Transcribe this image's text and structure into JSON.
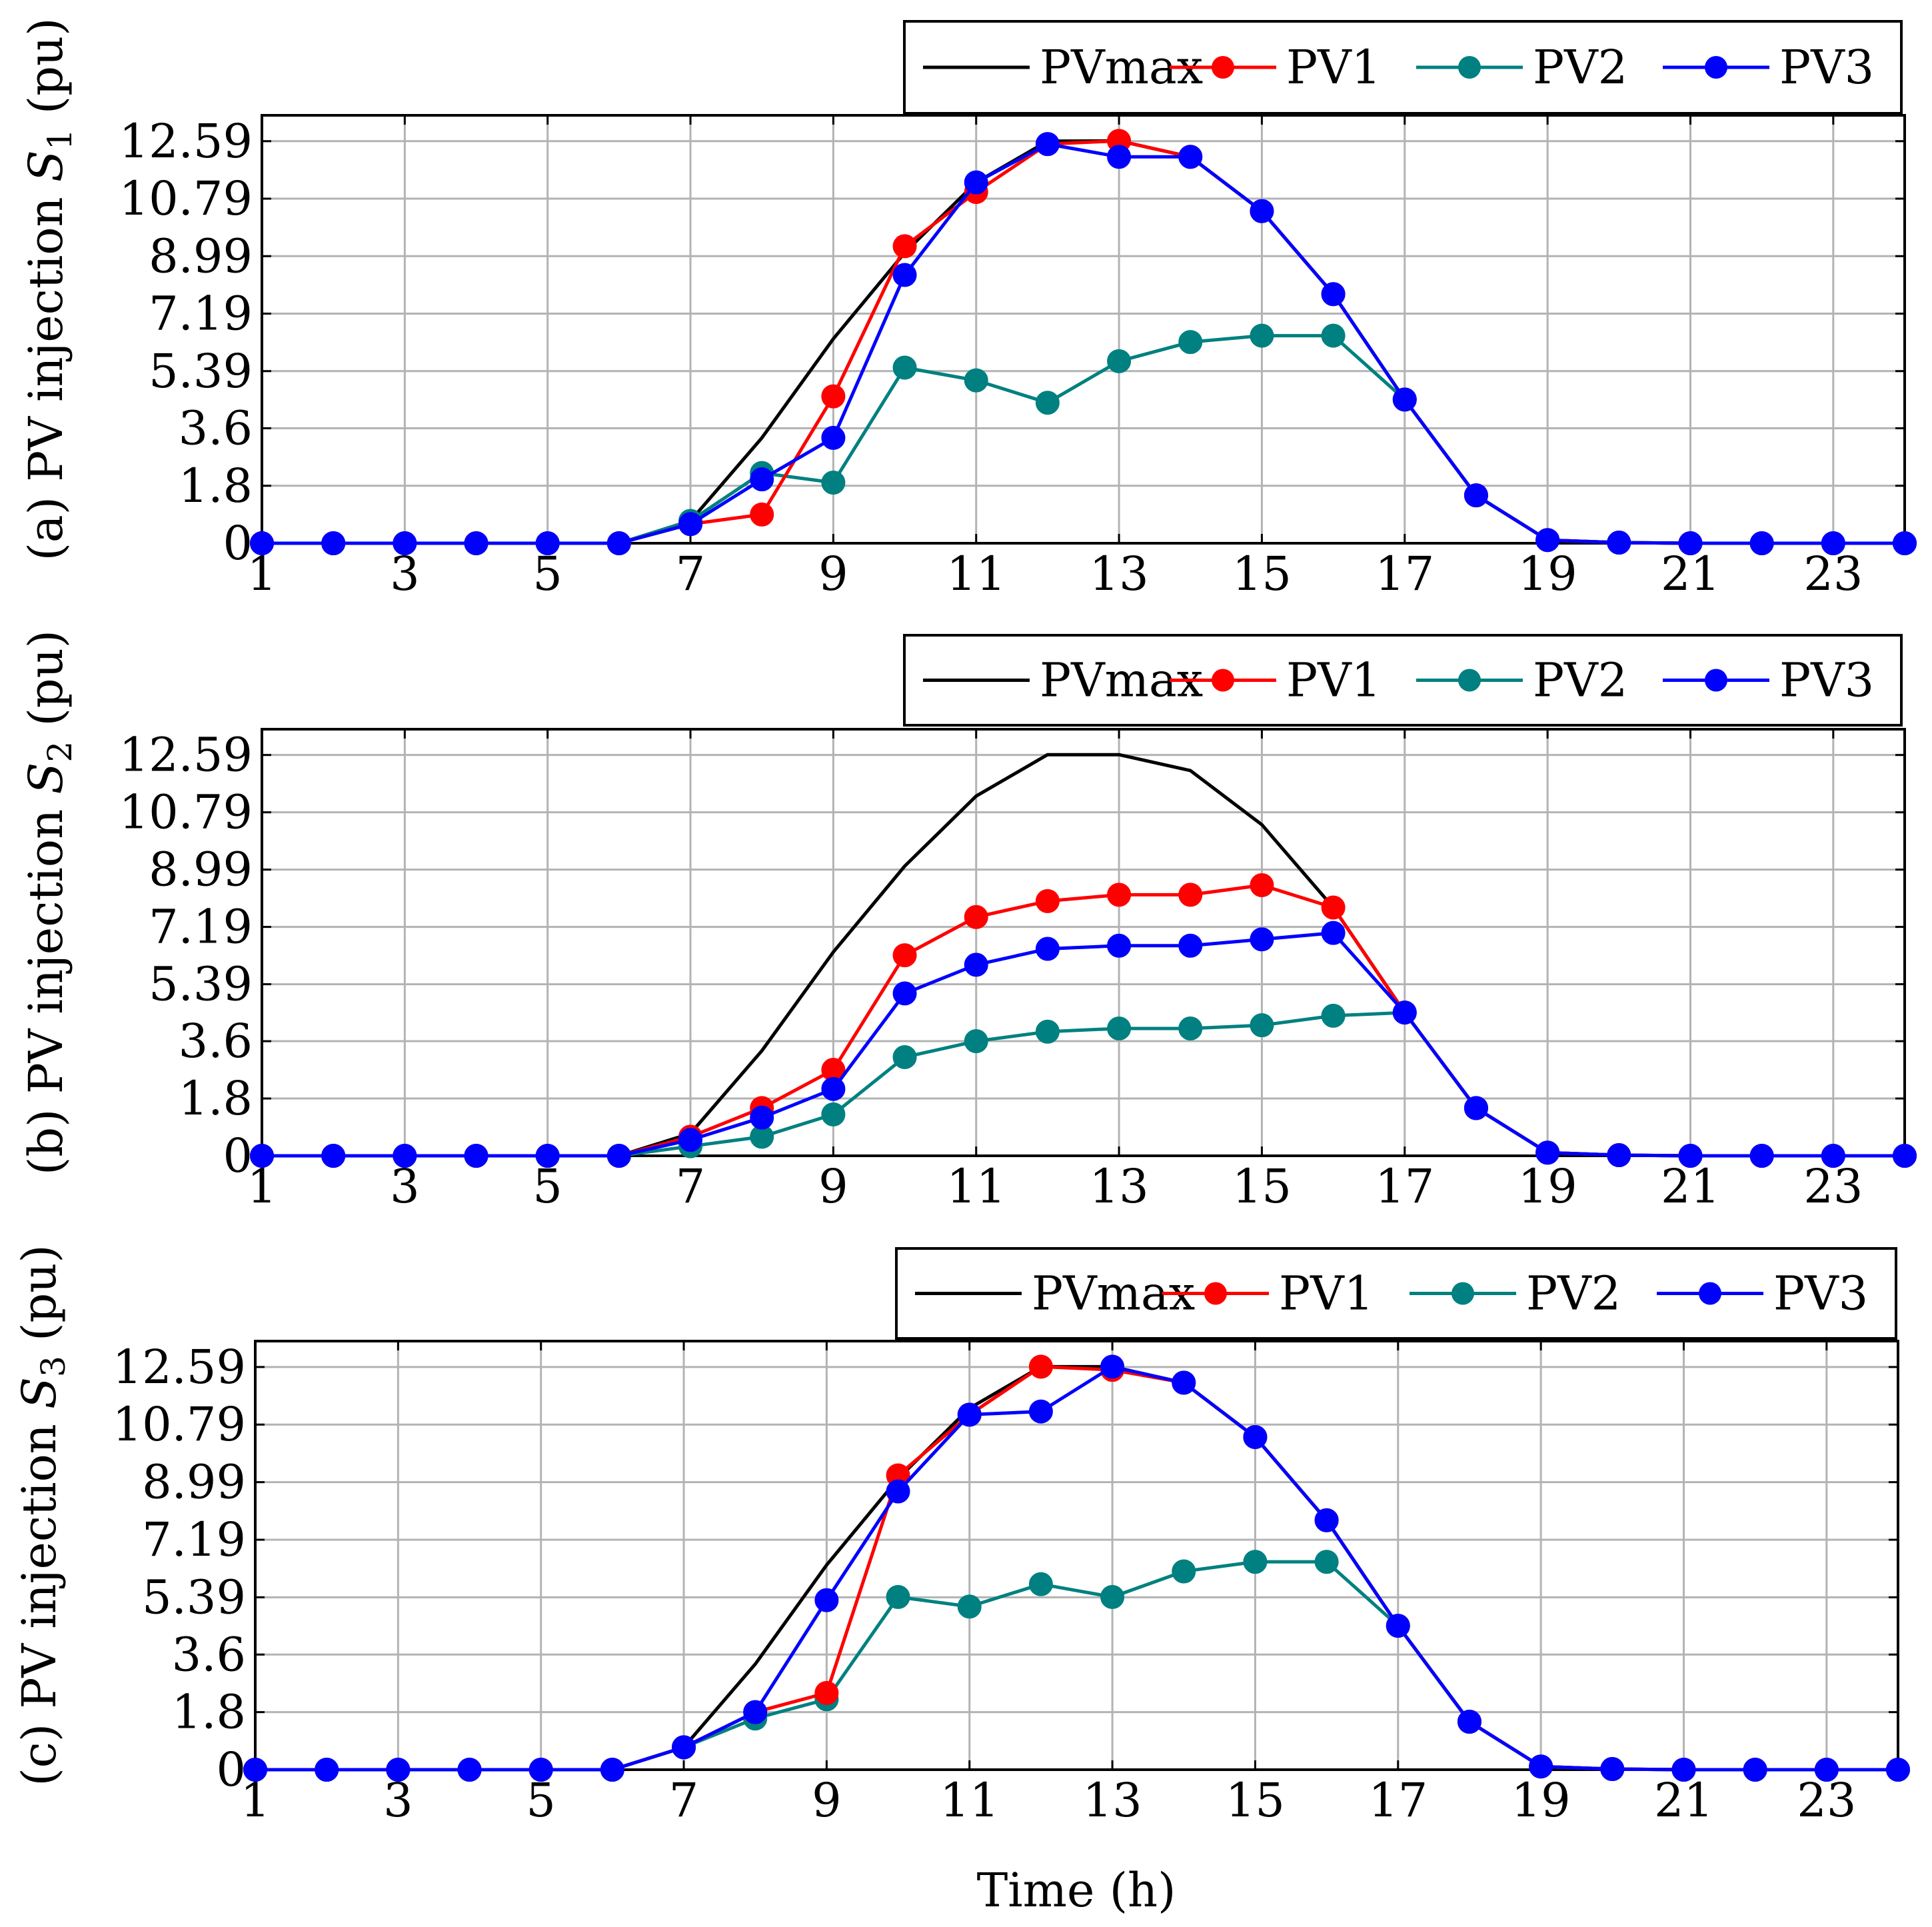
{
  "colors": {
    "pvmax": "#000000",
    "pv1": "#ff0000",
    "pv2": "#008080",
    "pv3": "#0000ff",
    "grid": "#b3b3b3"
  },
  "legend_labels": [
    "PVmax",
    "PV1",
    "PV2",
    "PV3"
  ],
  "x_axis_label": "Time (h)",
  "chart_data": [
    {
      "type": "line",
      "panel": "a",
      "ylabel_prefix": "(a) PV injection ",
      "ylabel_var": "S",
      "ylabel_sub": "1",
      "ylabel_suffix": " (pu)",
      "x": [
        1,
        2,
        3,
        4,
        5,
        6,
        7,
        8,
        9,
        10,
        11,
        12,
        13,
        14,
        15,
        16,
        17,
        18,
        19,
        20,
        21,
        22,
        23,
        24
      ],
      "xticks": [
        "1",
        "3",
        "5",
        "7",
        "9",
        "11",
        "13",
        "15",
        "17",
        "19",
        "21",
        "23"
      ],
      "xtick_values": [
        1,
        3,
        5,
        7,
        9,
        11,
        13,
        15,
        17,
        19,
        21,
        23
      ],
      "yticks": [
        "0",
        "1.8",
        "3.6",
        "5.39",
        "7.19",
        "8.99",
        "10.79",
        "12.59"
      ],
      "ytick_values": [
        0,
        1.8,
        3.6,
        5.39,
        7.19,
        8.99,
        10.79,
        12.59
      ],
      "xlim": [
        1,
        24
      ],
      "ylim": [
        0,
        13.4
      ],
      "grid": true,
      "legend_position": "top-right",
      "series": [
        {
          "name": "PVmax",
          "key": "pvmax",
          "markers": false,
          "values": [
            0,
            0,
            0,
            0,
            0,
            0,
            0.7,
            3.3,
            6.4,
            9.1,
            11.3,
            12.59,
            12.6,
            12.1,
            10.4,
            7.8,
            4.5,
            1.5,
            0.1,
            0.02,
            0,
            0,
            0,
            0
          ]
        },
        {
          "name": "PV1",
          "key": "pv1",
          "markers": true,
          "values": [
            0,
            0,
            0,
            0,
            0,
            0,
            0.6,
            0.9,
            4.6,
            9.3,
            11.0,
            12.5,
            12.6,
            12.1,
            10.4,
            7.8,
            4.5,
            1.5,
            0.1,
            0.02,
            0,
            0,
            0,
            0
          ]
        },
        {
          "name": "PV2",
          "key": "pv2",
          "markers": true,
          "values": [
            0,
            0,
            0,
            0,
            0,
            0,
            0.7,
            2.2,
            1.9,
            5.5,
            5.1,
            4.4,
            5.7,
            6.3,
            6.5,
            6.5,
            4.5,
            1.5,
            0.1,
            0.02,
            0,
            0,
            0,
            0
          ]
        },
        {
          "name": "PV3",
          "key": "pv3",
          "markers": true,
          "values": [
            0,
            0,
            0,
            0,
            0,
            0,
            0.6,
            2.0,
            3.3,
            8.4,
            11.3,
            12.5,
            12.1,
            12.1,
            10.4,
            7.8,
            4.5,
            1.5,
            0.1,
            0.02,
            0,
            0,
            0,
            0
          ]
        }
      ]
    },
    {
      "type": "line",
      "panel": "b",
      "ylabel_prefix": "(b) PV injection ",
      "ylabel_var": "S",
      "ylabel_sub": "2",
      "ylabel_suffix": " (pu)",
      "x": [
        1,
        2,
        3,
        4,
        5,
        6,
        7,
        8,
        9,
        10,
        11,
        12,
        13,
        14,
        15,
        16,
        17,
        18,
        19,
        20,
        21,
        22,
        23,
        24
      ],
      "xticks": [
        "1",
        "3",
        "5",
        "7",
        "9",
        "11",
        "13",
        "15",
        "17",
        "19",
        "21",
        "23"
      ],
      "xtick_values": [
        1,
        3,
        5,
        7,
        9,
        11,
        13,
        15,
        17,
        19,
        21,
        23
      ],
      "yticks": [
        "0",
        "1.8",
        "3.6",
        "5.39",
        "7.19",
        "8.99",
        "10.79",
        "12.59"
      ],
      "ytick_values": [
        0,
        1.8,
        3.6,
        5.39,
        7.19,
        8.99,
        10.79,
        12.59
      ],
      "xlim": [
        1,
        24
      ],
      "ylim": [
        0,
        13.4
      ],
      "grid": true,
      "legend_position": "top-right",
      "series": [
        {
          "name": "PVmax",
          "key": "pvmax",
          "markers": false,
          "values": [
            0,
            0,
            0,
            0,
            0,
            0,
            0.7,
            3.3,
            6.4,
            9.1,
            11.3,
            12.6,
            12.6,
            12.1,
            10.4,
            7.8,
            4.5,
            1.5,
            0.1,
            0.02,
            0,
            0,
            0,
            0
          ]
        },
        {
          "name": "PV1",
          "key": "pv1",
          "markers": true,
          "values": [
            0,
            0,
            0,
            0,
            0,
            0,
            0.6,
            1.5,
            2.7,
            6.3,
            7.5,
            8.0,
            8.2,
            8.2,
            8.5,
            7.8,
            4.5,
            1.5,
            0.1,
            0.02,
            0,
            0,
            0,
            0
          ]
        },
        {
          "name": "PV2",
          "key": "pv2",
          "markers": true,
          "values": [
            0,
            0,
            0,
            0,
            0,
            0,
            0.3,
            0.6,
            1.3,
            3.1,
            3.6,
            3.9,
            4.0,
            4.0,
            4.1,
            4.4,
            4.5,
            1.5,
            0.1,
            0.02,
            0,
            0,
            0,
            0
          ]
        },
        {
          "name": "PV3",
          "key": "pv3",
          "markers": true,
          "values": [
            0,
            0,
            0,
            0,
            0,
            0,
            0.5,
            1.2,
            2.1,
            5.1,
            6.0,
            6.5,
            6.6,
            6.6,
            6.8,
            7.0,
            4.5,
            1.5,
            0.1,
            0.02,
            0,
            0,
            0,
            0
          ]
        }
      ]
    },
    {
      "type": "line",
      "panel": "c",
      "ylabel_prefix": "(c) PV injection ",
      "ylabel_var": "S",
      "ylabel_sub": "3",
      "ylabel_suffix": " (pu)",
      "x": [
        1,
        2,
        3,
        4,
        5,
        6,
        7,
        8,
        9,
        10,
        11,
        12,
        13,
        14,
        15,
        16,
        17,
        18,
        19,
        20,
        21,
        22,
        23,
        24
      ],
      "xticks": [
        "1",
        "3",
        "5",
        "7",
        "9",
        "11",
        "13",
        "15",
        "17",
        "19",
        "21",
        "23"
      ],
      "xtick_values": [
        1,
        3,
        5,
        7,
        9,
        11,
        13,
        15,
        17,
        19,
        21,
        23
      ],
      "yticks": [
        "0",
        "1.8",
        "3.6",
        "5.39",
        "7.19",
        "8.99",
        "10.79",
        "12.59"
      ],
      "ytick_values": [
        0,
        1.8,
        3.6,
        5.39,
        7.19,
        8.99,
        10.79,
        12.59
      ],
      "xlim": [
        1,
        24
      ],
      "ylim": [
        0,
        13.4
      ],
      "grid": true,
      "legend_position": "top-right",
      "series": [
        {
          "name": "PVmax",
          "key": "pvmax",
          "markers": false,
          "values": [
            0,
            0,
            0,
            0,
            0,
            0,
            0.7,
            3.3,
            6.4,
            9.1,
            11.3,
            12.6,
            12.6,
            12.1,
            10.4,
            7.8,
            4.5,
            1.5,
            0.1,
            0.02,
            0,
            0,
            0,
            0
          ]
        },
        {
          "name": "PV1",
          "key": "pv1",
          "markers": true,
          "values": [
            0,
            0,
            0,
            0,
            0,
            0,
            0.7,
            1.8,
            2.4,
            9.2,
            11.1,
            12.6,
            12.5,
            12.1,
            10.4,
            7.8,
            4.5,
            1.5,
            0.1,
            0.02,
            0,
            0,
            0,
            0
          ]
        },
        {
          "name": "PV2",
          "key": "pv2",
          "markers": true,
          "values": [
            0,
            0,
            0,
            0,
            0,
            0,
            0.7,
            1.6,
            2.2,
            5.4,
            5.1,
            5.8,
            5.4,
            6.2,
            6.5,
            6.5,
            4.5,
            1.5,
            0.1,
            0.02,
            0,
            0,
            0,
            0
          ]
        },
        {
          "name": "PV3",
          "key": "pv3",
          "markers": true,
          "values": [
            0,
            0,
            0,
            0,
            0,
            0,
            0.7,
            1.8,
            5.3,
            8.7,
            11.1,
            11.2,
            12.6,
            12.1,
            10.4,
            7.8,
            4.5,
            1.5,
            0.1,
            0.02,
            0,
            0,
            0,
            0
          ]
        }
      ]
    }
  ]
}
